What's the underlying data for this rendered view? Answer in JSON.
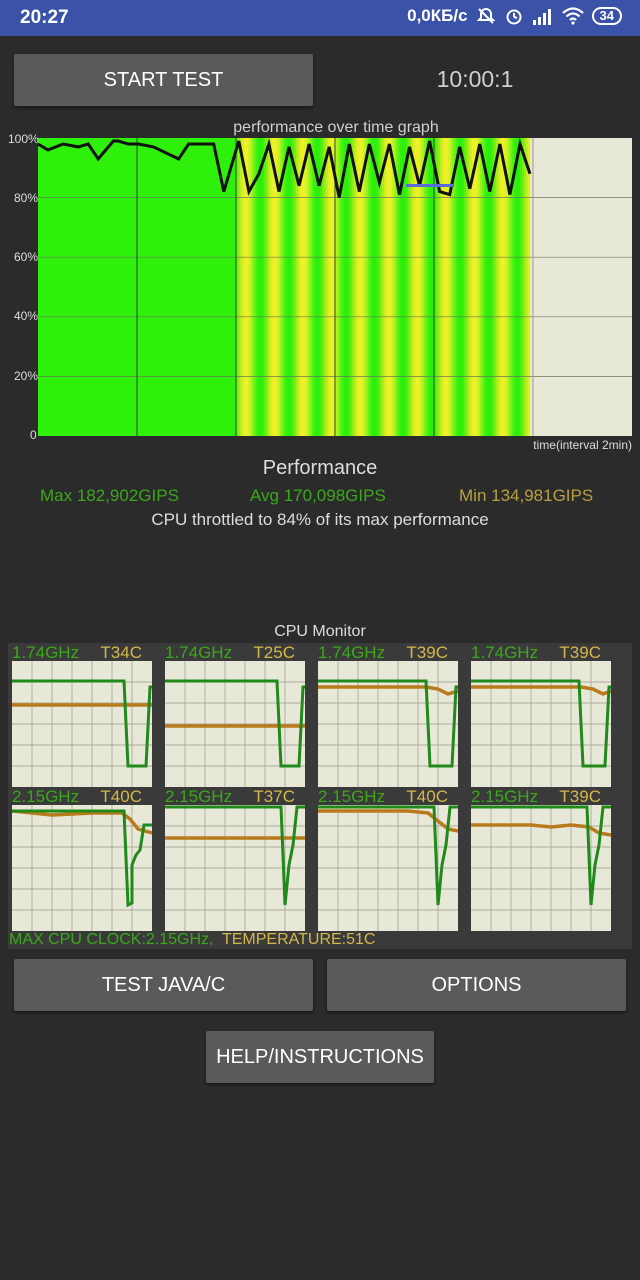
{
  "status_bar": {
    "time": "20:27",
    "net_speed": "0,0КБ/с",
    "battery": "34"
  },
  "controls": {
    "start_test": "START TEST",
    "timer": "10:00:1",
    "test_java": "TEST JAVA/C",
    "options": "OPTIONS",
    "help": "HELP/INSTRUCTIONS"
  },
  "graph": {
    "title": "performance over time graph",
    "y_ticks": [
      "100%",
      "80%",
      "60%",
      "40%",
      "20%",
      "0"
    ],
    "x_label": "time(interval 2min)"
  },
  "performance": {
    "title": "Performance",
    "max": "Max 182,902GIPS",
    "avg": "Avg 170,098GIPS",
    "min": "Min 134,981GIPS",
    "throttle_note": "CPU throttled to 84% of its max performance",
    "colors": {
      "max": "#3aa81a",
      "avg": "#3aa81a",
      "min": "#b8a040"
    }
  },
  "chart_data": {
    "type": "line",
    "title": "performance over time graph",
    "xlabel": "time(interval 2min)",
    "ylabel": "",
    "ylim": [
      0,
      100
    ],
    "x": [
      0,
      0.2,
      0.5,
      0.8,
      1.0,
      1.2,
      1.5,
      1.6,
      1.8,
      2.0,
      2.3,
      2.8,
      3.0,
      3.3,
      3.5,
      3.7,
      4.0,
      4.2,
      4.4,
      4.6,
      4.8,
      5.0,
      5.2,
      5.4,
      5.6,
      5.8,
      6.0,
      6.2,
      6.4,
      6.6,
      6.8,
      7.0,
      7.2,
      7.4,
      7.6,
      7.8,
      8.0,
      8.2,
      8.4,
      8.6,
      8.8,
      9.0,
      9.2,
      9.4,
      9.6,
      9.8
    ],
    "series": [
      {
        "values": [
          98,
          96,
          98,
          97,
          98,
          93,
          99,
          99,
          98,
          98,
          97,
          93,
          98,
          98,
          98,
          82,
          99,
          82,
          88,
          98,
          82,
          97,
          84,
          98,
          84,
          97,
          80,
          98,
          82,
          98,
          85,
          98,
          81,
          97,
          84,
          99,
          82,
          81,
          97,
          83,
          98,
          82,
          98,
          81,
          98,
          88
        ]
      }
    ],
    "cpu_monitor": {
      "title": "CPU Monitor",
      "cores": [
        {
          "freq": "1.74GHz",
          "temp": "T34C"
        },
        {
          "freq": "1.74GHz",
          "temp": "T25C"
        },
        {
          "freq": "1.74GHz",
          "temp": "T39C"
        },
        {
          "freq": "1.74GHz",
          "temp": "T39C"
        },
        {
          "freq": "2.15GHz",
          "temp": "T40C"
        },
        {
          "freq": "2.15GHz",
          "temp": "T37C"
        },
        {
          "freq": "2.15GHz",
          "temp": "T40C"
        },
        {
          "freq": "2.15GHz",
          "temp": "T39C"
        }
      ],
      "max_clock": "MAX CPU CLOCK:2.15GHz,",
      "temperature": "TEMPERATURE:51C"
    }
  }
}
